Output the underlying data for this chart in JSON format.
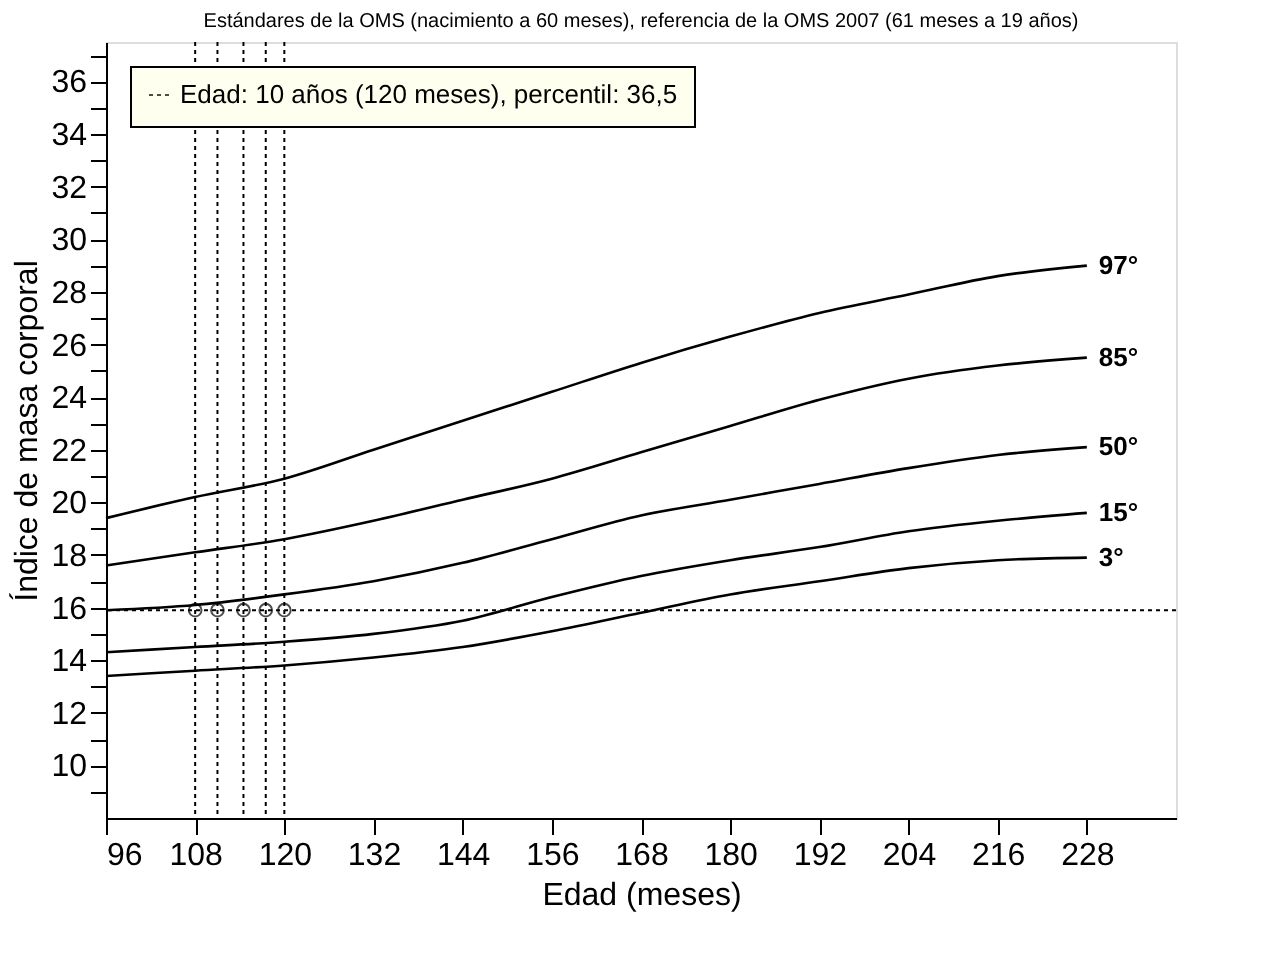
{
  "chart_data": {
    "type": "line",
    "title": "Estándares de la OMS (nacimiento a 60 meses), referencia de la OMS 2007 (61 meses a 19 años)",
    "xlabel": "Edad (meses)",
    "ylabel": "Índice de masa corporal",
    "x": [
      96,
      108,
      120,
      132,
      144,
      156,
      168,
      180,
      192,
      204,
      216,
      228
    ],
    "series": [
      {
        "name": "97°",
        "color": "#000000",
        "values": [
          19.4,
          20.2,
          20.9,
          22.0,
          23.1,
          24.2,
          25.3,
          26.3,
          27.2,
          27.9,
          28.6,
          29.0
        ]
      },
      {
        "name": "85°",
        "color": "#000000",
        "values": [
          17.6,
          18.1,
          18.6,
          19.3,
          20.1,
          20.9,
          21.9,
          22.9,
          23.9,
          24.7,
          25.2,
          25.5
        ]
      },
      {
        "name": "50°",
        "color": "#000000",
        "values": [
          15.9,
          16.1,
          16.5,
          17.0,
          17.7,
          18.6,
          19.5,
          20.1,
          20.7,
          21.3,
          21.8,
          22.1
        ]
      },
      {
        "name": "15°",
        "color": "#000000",
        "values": [
          14.3,
          14.5,
          14.7,
          15.0,
          15.5,
          16.4,
          17.2,
          17.8,
          18.3,
          18.9,
          19.3,
          19.6
        ]
      },
      {
        "name": "3°",
        "color": "#000000",
        "values": [
          13.4,
          13.6,
          13.8,
          14.1,
          14.5,
          15.1,
          15.8,
          16.5,
          17.0,
          17.5,
          17.8,
          17.9
        ]
      },
      {
        "name": "Edad: 10 años (120 meses), percentil: 36,5",
        "type": "scatter",
        "marker": "circle",
        "color": "#000000",
        "x": [
          108,
          111,
          114.5,
          117.5,
          120
        ],
        "values": [
          15.9,
          15.9,
          15.9,
          15.9,
          15.9
        ]
      }
    ],
    "ref_lines": [
      {
        "axis": "y",
        "value": 15.9,
        "line_style": "dotted"
      },
      {
        "axis": "x",
        "value": 108,
        "line_style": "dotted"
      },
      {
        "axis": "x",
        "value": 111,
        "line_style": "dotted"
      },
      {
        "axis": "x",
        "value": 114.5,
        "line_style": "dotted"
      },
      {
        "axis": "x",
        "value": 117.5,
        "line_style": "dotted"
      },
      {
        "axis": "x",
        "value": 120,
        "line_style": "dotted"
      }
    ],
    "xlim": [
      96,
      240
    ],
    "xticks": [
      96,
      108,
      120,
      132,
      144,
      156,
      168,
      180,
      192,
      204,
      216,
      228
    ],
    "ylim": [
      8,
      37.5
    ],
    "yticks": [
      {
        "value": 9,
        "label": null
      },
      10,
      {
        "value": 11,
        "label": null
      },
      12,
      {
        "value": 13,
        "label": null
      },
      14,
      {
        "value": 15,
        "label": null
      },
      16,
      {
        "value": 17,
        "label": null
      },
      18,
      {
        "value": 19,
        "label": null
      },
      20,
      {
        "value": 21,
        "label": null
      },
      22,
      {
        "value": 23,
        "label": null
      },
      24,
      {
        "value": 25,
        "label": null
      },
      26,
      {
        "value": 27,
        "label": null
      },
      28,
      {
        "value": 29,
        "label": null
      },
      30,
      {
        "value": 31,
        "label": null
      },
      32,
      {
        "value": 33,
        "label": null
      },
      34,
      {
        "value": 35,
        "label": null
      },
      36,
      {
        "value": 37,
        "label": null
      }
    ],
    "grid": false,
    "legend": "top left",
    "line_style": "solid"
  }
}
